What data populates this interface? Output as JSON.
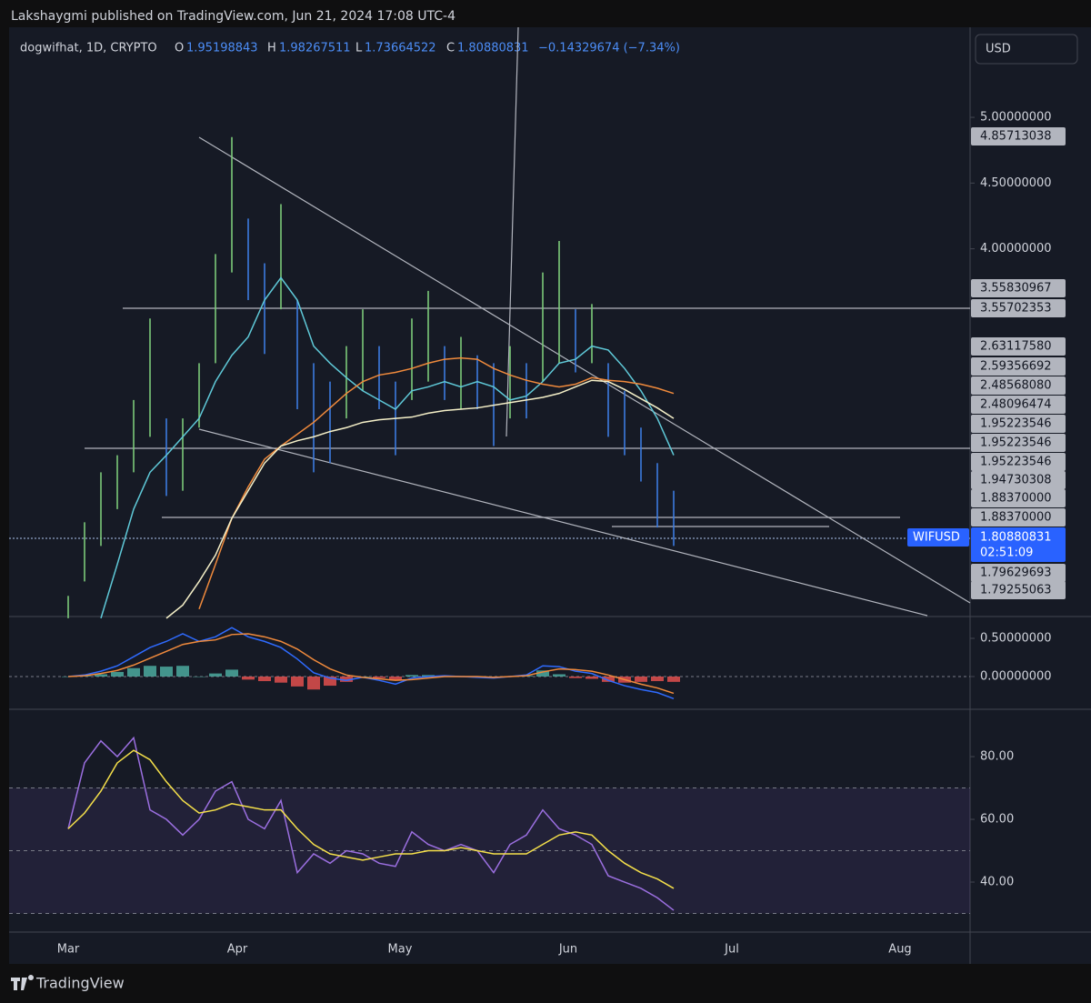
{
  "header": {
    "publisher": "Lakshaygmi published on TradingView.com, Jun 21, 2024 17:08 UTC-4"
  },
  "legend": {
    "symbol": "dogwifhat, 1D, CRYPTO",
    "open_label": "O",
    "open": "1.95198843",
    "high_label": "H",
    "high": "1.98267511",
    "low_label": "L",
    "low": "1.73664522",
    "close_label": "C",
    "close": "1.80880831",
    "change": "−0.14329674 (−7.34%)"
  },
  "currency": "USD",
  "chart_data": [
    {
      "type": "ohlc",
      "up_color": "#7cc97a",
      "down_color": "#3d7be0",
      "high": [
        1.36,
        1.92,
        2.3,
        2.43,
        2.85,
        3.47,
        2.71,
        2.71,
        3.13,
        3.96,
        4.85,
        4.23,
        3.89,
        4.34,
        3.61,
        3.13,
        2.99,
        3.26,
        3.54,
        3.26,
        2.99,
        3.47,
        3.68,
        3.26,
        3.33,
        3.19,
        3.13,
        3.26,
        3.13,
        3.82,
        4.06,
        3.54,
        3.58,
        3.13,
        2.92,
        2.64,
        2.37,
        2.16
      ],
      "low": [
        1.19,
        1.47,
        1.74,
        2.02,
        2.3,
        2.57,
        2.12,
        2.16,
        2.64,
        3.13,
        3.82,
        3.61,
        3.2,
        3.54,
        2.78,
        2.3,
        2.37,
        2.71,
        2.92,
        2.78,
        2.43,
        2.85,
        2.99,
        2.85,
        2.78,
        2.78,
        2.5,
        2.71,
        2.71,
        2.99,
        3.13,
        3.06,
        3.13,
        2.57,
        2.43,
        2.23,
        1.88,
        1.74
      ],
      "lines": [
        {
          "color": "#5fc9d8",
          "values": [
            null,
            null,
            1.19,
            1.6,
            2.02,
            2.3,
            2.43,
            2.57,
            2.71,
            2.99,
            3.19,
            3.33,
            3.61,
            3.78,
            3.61,
            3.26,
            3.13,
            3.02,
            2.92,
            2.85,
            2.78,
            2.92,
            2.95,
            2.99,
            2.95,
            2.99,
            2.95,
            2.85,
            2.88,
            2.99,
            3.13,
            3.16,
            3.26,
            3.23,
            3.09,
            2.92,
            2.71,
            2.43
          ]
        },
        {
          "color": "#f08a3c",
          "values": [
            null,
            null,
            null,
            null,
            null,
            null,
            null,
            null,
            1.26,
            1.6,
            1.95,
            2.19,
            2.4,
            2.5,
            2.59,
            2.68,
            2.79,
            2.9,
            2.99,
            3.04,
            3.06,
            3.09,
            3.13,
            3.16,
            3.17,
            3.16,
            3.09,
            3.04,
            3.0,
            2.97,
            2.95,
            2.97,
            3.02,
            3.0,
            2.99,
            2.97,
            2.94,
            2.9
          ]
        },
        {
          "color": "#f5f0c8",
          "values": [
            null,
            null,
            null,
            null,
            null,
            null,
            1.19,
            1.29,
            1.47,
            1.67,
            1.95,
            2.16,
            2.37,
            2.5,
            2.54,
            2.57,
            2.61,
            2.64,
            2.68,
            2.7,
            2.71,
            2.72,
            2.75,
            2.77,
            2.78,
            2.79,
            2.81,
            2.83,
            2.85,
            2.87,
            2.9,
            2.95,
            3.0,
            2.99,
            2.93,
            2.86,
            2.79,
            2.71
          ]
        }
      ],
      "ylim": [
        1.21,
        5.685
      ],
      "yticks": [
        {
          "value": 5,
          "label": "5.00000000"
        },
        {
          "value": 4.5,
          "label": "4.50000000"
        },
        {
          "value": 4,
          "label": "4.00000000"
        }
      ]
    },
    {
      "type": "macd",
      "pos_color": "#4fb3a6",
      "neg_color": "#ef5350",
      "histogram": [
        0,
        0.01,
        0.03,
        0.06,
        0.11,
        0.14,
        0.13,
        0.14,
        0,
        0.04,
        0.09,
        -0.04,
        -0.06,
        -0.08,
        -0.13,
        -0.17,
        -0.12,
        -0.07,
        0,
        -0.02,
        -0.05,
        0.02,
        0.02,
        0.01,
        0,
        -0.01,
        -0.01,
        0,
        0.01,
        0.08,
        0.03,
        -0.02,
        -0.03,
        -0.07,
        -0.08,
        -0.07,
        -0.06,
        -0.07
      ],
      "lines": [
        {
          "color": "#2f6bff",
          "values": [
            0,
            0.02,
            0.07,
            0.14,
            0.26,
            0.38,
            0.46,
            0.56,
            0.46,
            0.52,
            0.64,
            0.52,
            0.46,
            0.38,
            0.23,
            0.05,
            -0.02,
            -0.05,
            -0.01,
            -0.05,
            -0.1,
            -0.02,
            0,
            0.01,
            0,
            -0.01,
            -0.02,
            0,
            0.02,
            0.14,
            0.13,
            0.07,
            0.04,
            -0.05,
            -0.12,
            -0.17,
            -0.21,
            -0.29
          ]
        },
        {
          "color": "#f08a3c",
          "values": [
            0,
            0.01,
            0.04,
            0.08,
            0.15,
            0.24,
            0.33,
            0.42,
            0.46,
            0.48,
            0.55,
            0.56,
            0.52,
            0.46,
            0.36,
            0.22,
            0.1,
            0.02,
            -0.01,
            -0.03,
            -0.05,
            -0.04,
            -0.02,
            0,
            0,
            0,
            -0.01,
            0,
            0.01,
            0.06,
            0.1,
            0.09,
            0.07,
            0.02,
            -0.04,
            -0.1,
            -0.15,
            -0.22
          ]
        }
      ],
      "ylim": [
        -0.429,
        0.786
      ],
      "yticks": [
        {
          "value": 0.5,
          "label": "0.50000000"
        },
        {
          "value": 0,
          "label": "0.00000000"
        }
      ]
    },
    {
      "type": "rsi",
      "band_color": "#7e57c2",
      "bands": [
        70,
        50,
        30
      ],
      "lines": [
        {
          "color": "#9b6fe0",
          "values": [
            57,
            78,
            85,
            80,
            86,
            63,
            60,
            55,
            60,
            69,
            72,
            60,
            57,
            66,
            43,
            49,
            46,
            50,
            49,
            46,
            45,
            56,
            52,
            50,
            52,
            50,
            43,
            52,
            55,
            63,
            57,
            55,
            52,
            42,
            40,
            38,
            35,
            31
          ]
        },
        {
          "color": "#f5e04a",
          "values": [
            57,
            62,
            69,
            78,
            82,
            79,
            72,
            66,
            62,
            63,
            65,
            64,
            63,
            63,
            57,
            52,
            49,
            48,
            47,
            48,
            49,
            49,
            50,
            50,
            51,
            50,
            49,
            49,
            49,
            52,
            55,
            56,
            55,
            50,
            46,
            43,
            41,
            38
          ]
        }
      ],
      "ylim": [
        24.06,
        94.8
      ],
      "yticks": [
        {
          "value": 80,
          "label": "80.00"
        },
        {
          "value": 60,
          "label": "60.00"
        },
        {
          "value": 40,
          "label": "40.00"
        }
      ]
    }
  ],
  "time_labels": [
    "Mar",
    "Apr",
    "May",
    "Jun",
    "Jul",
    "Aug"
  ],
  "price_flags": [
    "4.85713038",
    "3.55830967",
    "3.55702353",
    "2.63117580",
    "2.59356692",
    "2.48568080",
    "2.48096474",
    "1.95223546",
    "1.95223546",
    "1.95223546",
    "1.94730308",
    "1.88370000",
    "1.88370000",
    "1.79629693",
    "1.79255063"
  ],
  "symbol_flag": {
    "symbol": "WIFUSD",
    "price": "1.80880831",
    "countdown": "02:51:09"
  },
  "footer": {
    "brand": "TradingView"
  }
}
